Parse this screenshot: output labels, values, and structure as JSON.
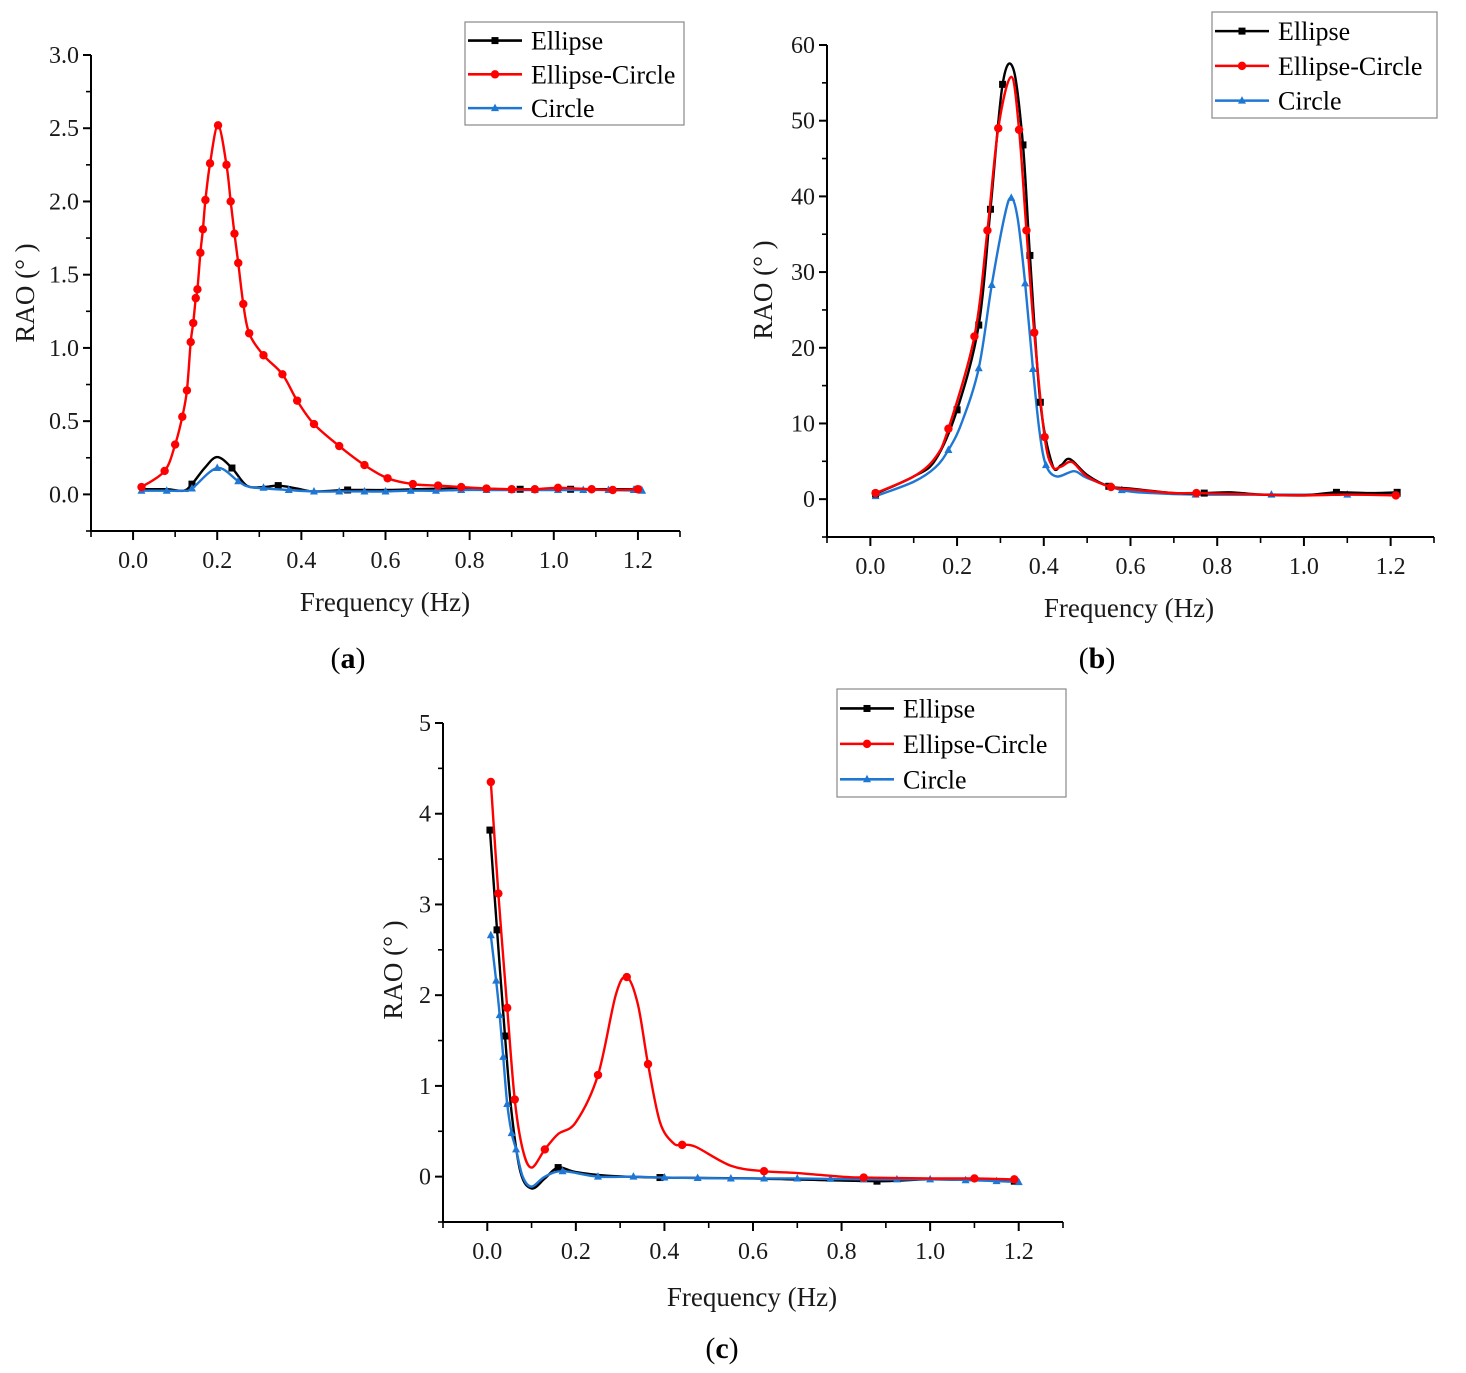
{
  "colors": {
    "ellipse": "#000000",
    "ellipse_circle": "#ff0000",
    "circle": "#1f77d4",
    "axis": "#000000",
    "legend_border": "#888888"
  },
  "chart_data": [
    {
      "id": "a",
      "type": "line",
      "panel_label": "a",
      "xlabel": "Frequency (Hz)",
      "ylabel": "RAO (° )",
      "xlim": [
        -0.1,
        1.3
      ],
      "ylim": [
        -0.25,
        3.0
      ],
      "xticks": [
        0.0,
        0.2,
        0.4,
        0.6,
        0.8,
        1.0,
        1.2
      ],
      "xtick_labels": [
        "0.0",
        "0.2",
        "0.4",
        "0.6",
        "0.8",
        "1.0",
        "1.2"
      ],
      "yticks": [
        0.0,
        0.5,
        1.0,
        1.5,
        2.0,
        2.5,
        3.0
      ],
      "ytick_labels": [
        "0.0",
        "0.5",
        "1.0",
        "1.5",
        "2.0",
        "2.5",
        "3.0"
      ],
      "legend": {
        "placement": "top-right",
        "entries": [
          "Ellipse",
          "Ellipse-Circle",
          "Circle"
        ]
      },
      "grid": false,
      "series": [
        {
          "name": "Ellipse",
          "color_key": "ellipse",
          "marker": "square",
          "x": [
            0.02,
            0.08,
            0.12,
            0.14,
            0.17,
            0.2,
            0.235,
            0.27,
            0.31,
            0.345,
            0.39,
            0.43,
            0.51,
            0.6,
            0.75,
            0.92,
            1.04,
            1.2
          ],
          "y": [
            0.035,
            0.035,
            0.025,
            0.07,
            0.18,
            0.255,
            0.18,
            0.06,
            0.05,
            0.06,
            0.04,
            0.02,
            0.03,
            0.03,
            0.04,
            0.035,
            0.035,
            0.035
          ],
          "markers_x": [
            0.14,
            0.235,
            0.345,
            0.51,
            0.92,
            1.04,
            1.2
          ],
          "markers_y": [
            0.07,
            0.18,
            0.06,
            0.03,
            0.035,
            0.035,
            0.035
          ]
        },
        {
          "name": "Ellipse-Circle",
          "color_key": "ellipse_circle",
          "marker": "circle",
          "x": [
            0.02,
            0.075,
            0.1,
            0.117,
            0.128,
            0.137,
            0.143,
            0.149,
            0.153,
            0.16,
            0.166,
            0.172,
            0.183,
            0.202,
            0.222,
            0.232,
            0.241,
            0.25,
            0.262,
            0.276,
            0.31,
            0.355,
            0.39,
            0.43,
            0.49,
            0.55,
            0.605,
            0.665,
            0.725,
            0.78,
            0.84,
            0.9,
            0.955,
            1.01,
            1.09,
            1.14,
            1.2
          ],
          "y": [
            0.05,
            0.16,
            0.34,
            0.53,
            0.71,
            1.04,
            1.17,
            1.34,
            1.4,
            1.65,
            1.81,
            2.01,
            2.26,
            2.52,
            2.25,
            2.0,
            1.78,
            1.58,
            1.3,
            1.1,
            0.95,
            0.82,
            0.64,
            0.48,
            0.33,
            0.2,
            0.11,
            0.07,
            0.06,
            0.05,
            0.04,
            0.035,
            0.035,
            0.045,
            0.035,
            0.03,
            0.035
          ],
          "markers_x": [
            0.02,
            0.075,
            0.1,
            0.117,
            0.128,
            0.137,
            0.143,
            0.149,
            0.153,
            0.16,
            0.166,
            0.172,
            0.183,
            0.202,
            0.222,
            0.232,
            0.241,
            0.25,
            0.262,
            0.276,
            0.31,
            0.355,
            0.39,
            0.43,
            0.49,
            0.55,
            0.605,
            0.665,
            0.725,
            0.78,
            0.84,
            0.9,
            0.955,
            1.01,
            1.09,
            1.14,
            1.2
          ],
          "markers_y": [
            0.05,
            0.16,
            0.34,
            0.53,
            0.71,
            1.04,
            1.17,
            1.34,
            1.4,
            1.65,
            1.81,
            2.01,
            2.26,
            2.52,
            2.25,
            2.0,
            1.78,
            1.58,
            1.3,
            1.1,
            0.95,
            0.82,
            0.64,
            0.48,
            0.33,
            0.2,
            0.11,
            0.07,
            0.06,
            0.05,
            0.04,
            0.035,
            0.035,
            0.045,
            0.035,
            0.03,
            0.035
          ]
        },
        {
          "name": "Circle",
          "color_key": "circle",
          "marker": "triangle",
          "x": [
            0.02,
            0.08,
            0.12,
            0.14,
            0.2,
            0.25,
            0.28,
            0.37,
            0.43,
            0.49,
            0.55,
            0.6,
            0.66,
            0.72,
            0.78,
            0.84,
            0.9,
            0.955,
            1.01,
            1.07,
            1.13,
            1.21
          ],
          "y": [
            0.025,
            0.025,
            0.025,
            0.04,
            0.18,
            0.09,
            0.05,
            0.03,
            0.02,
            0.02,
            0.02,
            0.02,
            0.025,
            0.025,
            0.03,
            0.03,
            0.03,
            0.03,
            0.03,
            0.03,
            0.03,
            0.025
          ],
          "markers_x": [
            0.02,
            0.08,
            0.14,
            0.2,
            0.25,
            0.31,
            0.37,
            0.43,
            0.49,
            0.55,
            0.6,
            0.66,
            0.72,
            0.78,
            0.84,
            0.9,
            0.955,
            1.01,
            1.07,
            1.13,
            1.19,
            1.21
          ],
          "markers_y": [
            0.025,
            0.025,
            0.04,
            0.18,
            0.09,
            0.045,
            0.03,
            0.02,
            0.02,
            0.02,
            0.02,
            0.025,
            0.025,
            0.03,
            0.03,
            0.03,
            0.03,
            0.03,
            0.03,
            0.03,
            0.03,
            0.025
          ]
        }
      ]
    },
    {
      "id": "b",
      "type": "line",
      "panel_label": "b",
      "xlabel": "Frequency (Hz)",
      "ylabel": "RAO (° )",
      "xlim": [
        -0.1,
        1.3
      ],
      "ylim": [
        -5,
        60
      ],
      "xticks": [
        0.0,
        0.2,
        0.4,
        0.6,
        0.8,
        1.0,
        1.2
      ],
      "xtick_labels": [
        "0.0",
        "0.2",
        "0.4",
        "0.6",
        "0.8",
        "1.0",
        "1.2"
      ],
      "yticks": [
        0,
        10,
        20,
        30,
        40,
        50,
        60
      ],
      "ytick_labels": [
        "0",
        "10",
        "20",
        "30",
        "40",
        "50",
        "60"
      ],
      "legend": {
        "placement": "top-right",
        "entries": [
          "Ellipse",
          "Ellipse-Circle",
          "Circle"
        ]
      },
      "grid": false,
      "series": [
        {
          "name": "Ellipse",
          "color_key": "ellipse",
          "marker": "square",
          "x": [
            0.012,
            0.1,
            0.15,
            0.2,
            0.25,
            0.277,
            0.305,
            0.33,
            0.352,
            0.368,
            0.392,
            0.42,
            0.44,
            0.46,
            0.5,
            0.55,
            0.6,
            0.7,
            0.77,
            0.83,
            0.9,
            1.0,
            1.075,
            1.15,
            1.215
          ],
          "y": [
            0.7,
            3.0,
            5.2,
            11.8,
            23.0,
            38.3,
            54.8,
            56.8,
            46.8,
            32.2,
            12.8,
            4.5,
            4.5,
            5.3,
            3.2,
            1.7,
            1.4,
            0.8,
            0.8,
            0.9,
            0.6,
            0.5,
            0.9,
            0.8,
            0.9
          ],
          "markers_x": [
            0.012,
            0.2,
            0.25,
            0.277,
            0.305,
            0.352,
            0.368,
            0.392,
            0.55,
            0.77,
            1.075,
            1.215
          ],
          "markers_y": [
            0.7,
            11.8,
            23.0,
            38.3,
            54.8,
            46.8,
            32.2,
            12.8,
            1.7,
            0.8,
            0.9,
            0.9
          ]
        },
        {
          "name": "Ellipse-Circle",
          "color_key": "ellipse_circle",
          "marker": "circle",
          "x": [
            0.012,
            0.1,
            0.15,
            0.18,
            0.24,
            0.27,
            0.295,
            0.325,
            0.343,
            0.36,
            0.378,
            0.402,
            0.42,
            0.44,
            0.465,
            0.5,
            0.555,
            0.6,
            0.7,
            0.752,
            0.9,
            1.0,
            1.1,
            1.212
          ],
          "y": [
            0.8,
            3.0,
            5.5,
            9.3,
            21.5,
            35.5,
            49.0,
            55.8,
            48.8,
            35.5,
            22.0,
            8.2,
            4.3,
            4.3,
            4.9,
            3.0,
            1.6,
            1.3,
            0.8,
            0.8,
            0.6,
            0.5,
            0.6,
            0.5
          ],
          "markers_x": [
            0.012,
            0.18,
            0.24,
            0.27,
            0.295,
            0.343,
            0.36,
            0.378,
            0.402,
            0.555,
            0.752,
            1.212
          ],
          "markers_y": [
            0.8,
            9.3,
            21.5,
            35.5,
            49.0,
            48.8,
            35.5,
            22.0,
            8.2,
            1.6,
            0.8,
            0.5
          ]
        },
        {
          "name": "Circle",
          "color_key": "circle",
          "marker": "triangle",
          "x": [
            0.012,
            0.1,
            0.15,
            0.18,
            0.21,
            0.25,
            0.28,
            0.31,
            0.325,
            0.34,
            0.357,
            0.375,
            0.39,
            0.405,
            0.43,
            0.47,
            0.5,
            0.58,
            0.65,
            0.75,
            0.925,
            1.1,
            1.215
          ],
          "y": [
            0.4,
            2.3,
            4.2,
            6.5,
            10.0,
            17.3,
            28.3,
            37.5,
            39.8,
            37.0,
            28.5,
            17.2,
            9.0,
            4.5,
            3.0,
            3.7,
            2.8,
            1.2,
            0.8,
            0.6,
            0.6,
            0.6,
            0.7
          ],
          "markers_x": [
            0.012,
            0.18,
            0.25,
            0.28,
            0.325,
            0.357,
            0.375,
            0.405,
            0.58,
            0.75,
            0.925,
            1.1,
            1.215
          ],
          "markers_y": [
            0.4,
            6.5,
            17.3,
            28.3,
            39.8,
            28.5,
            17.2,
            4.5,
            1.2,
            0.6,
            0.6,
            0.6,
            0.7
          ]
        }
      ]
    },
    {
      "id": "c",
      "type": "line",
      "panel_label": "c",
      "xlabel": "Frequency (Hz)",
      "ylabel": "RAO (° )",
      "xlim": [
        -0.1,
        1.3
      ],
      "ylim": [
        -0.5,
        5
      ],
      "xticks": [
        0.0,
        0.2,
        0.4,
        0.6,
        0.8,
        1.0,
        1.2
      ],
      "xtick_labels": [
        "0.0",
        "0.2",
        "0.4",
        "0.6",
        "0.8",
        "1.0",
        "1.2"
      ],
      "yticks": [
        0,
        1,
        2,
        3,
        4,
        5
      ],
      "ytick_labels": [
        "0",
        "1",
        "2",
        "3",
        "4",
        "5"
      ],
      "legend": {
        "placement": "top-right",
        "entries": [
          "Ellipse",
          "Ellipse-Circle",
          "Circle"
        ]
      },
      "grid": false,
      "series": [
        {
          "name": "Ellipse",
          "color_key": "ellipse",
          "marker": "square",
          "x": [
            0.006,
            0.022,
            0.04,
            0.055,
            0.075,
            0.1,
            0.13,
            0.16,
            0.2,
            0.27,
            0.39,
            0.6,
            0.88,
            1.0,
            1.19
          ],
          "y": [
            3.82,
            2.72,
            1.55,
            0.7,
            0.05,
            -0.13,
            -0.02,
            0.1,
            0.05,
            0.01,
            -0.01,
            -0.02,
            -0.05,
            -0.03,
            -0.05
          ],
          "markers_x": [
            0.006,
            0.022,
            0.04,
            0.16,
            0.39,
            0.88,
            1.19
          ],
          "markers_y": [
            3.82,
            2.72,
            1.55,
            0.1,
            -0.01,
            -0.05,
            -0.05
          ]
        },
        {
          "name": "Ellipse-Circle",
          "color_key": "ellipse_circle",
          "marker": "circle",
          "x": [
            0.008,
            0.025,
            0.045,
            0.062,
            0.08,
            0.1,
            0.13,
            0.16,
            0.2,
            0.25,
            0.29,
            0.315,
            0.34,
            0.363,
            0.39,
            0.42,
            0.44,
            0.47,
            0.55,
            0.625,
            0.7,
            0.8,
            0.85,
            1.0,
            1.1,
            1.19
          ],
          "y": [
            4.35,
            3.12,
            1.86,
            0.85,
            0.3,
            0.1,
            0.3,
            0.47,
            0.6,
            1.12,
            2.0,
            2.2,
            1.9,
            1.24,
            0.6,
            0.37,
            0.35,
            0.33,
            0.12,
            0.06,
            0.04,
            0.0,
            -0.01,
            -0.02,
            -0.02,
            -0.03
          ],
          "markers_x": [
            0.008,
            0.025,
            0.045,
            0.062,
            0.13,
            0.25,
            0.315,
            0.363,
            0.44,
            0.625,
            0.85,
            1.1,
            1.19
          ],
          "markers_y": [
            4.35,
            3.12,
            1.86,
            0.85,
            0.3,
            1.12,
            2.2,
            1.24,
            0.35,
            0.06,
            -0.01,
            -0.02,
            -0.03
          ]
        },
        {
          "name": "Circle",
          "color_key": "circle",
          "marker": "triangle",
          "x": [
            0.008,
            0.02,
            0.028,
            0.036,
            0.045,
            0.055,
            0.065,
            0.08,
            0.1,
            0.13,
            0.17,
            0.25,
            0.33,
            0.4,
            0.55,
            0.7,
            0.85,
            1.0,
            1.1,
            1.2
          ],
          "y": [
            2.66,
            2.16,
            1.78,
            1.32,
            0.8,
            0.48,
            0.3,
            0.0,
            -0.11,
            0.0,
            0.06,
            0.0,
            0.0,
            -0.01,
            -0.02,
            -0.02,
            -0.03,
            -0.03,
            -0.04,
            -0.06
          ],
          "markers_x": [
            0.008,
            0.02,
            0.028,
            0.036,
            0.045,
            0.055,
            0.065,
            0.17,
            0.25,
            0.33,
            0.4,
            0.475,
            0.55,
            0.625,
            0.7,
            0.775,
            0.85,
            0.925,
            1.0,
            1.08,
            1.15,
            1.2
          ],
          "markers_y": [
            2.66,
            2.16,
            1.78,
            1.32,
            0.8,
            0.48,
            0.3,
            0.06,
            0.0,
            0.0,
            -0.01,
            -0.015,
            -0.02,
            -0.02,
            -0.02,
            -0.025,
            -0.03,
            -0.03,
            -0.03,
            -0.04,
            -0.05,
            -0.06
          ]
        }
      ]
    }
  ]
}
